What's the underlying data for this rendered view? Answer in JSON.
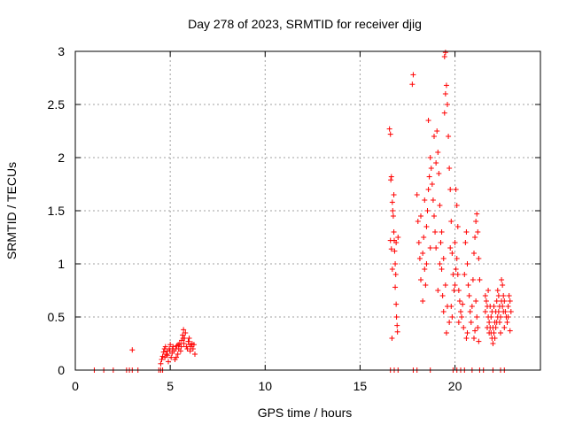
{
  "chart_data": {
    "type": "scatter",
    "title": "Day 278 of 2023, SRMTID for receiver djig",
    "xlabel": "GPS time / hours",
    "ylabel": "SRMTID / TECUs",
    "xlim": [
      0,
      24.5
    ],
    "ylim": [
      0,
      3
    ],
    "xticks": [
      0,
      5,
      10,
      15,
      20
    ],
    "xtick_labels": [
      "0",
      "5",
      "10",
      "15",
      "20"
    ],
    "yticks": [
      0,
      0.5,
      1,
      1.5,
      2,
      2.5,
      3
    ],
    "ytick_labels": [
      "0",
      "0.5",
      "1",
      "1.5",
      "2",
      "2.5",
      "3"
    ],
    "grid": true,
    "marker": "+",
    "series": [
      {
        "name": "SRMTID",
        "color": "#ff0000",
        "points": [
          [
            1.0,
            0
          ],
          [
            1.5,
            0
          ],
          [
            2.0,
            0
          ],
          [
            2.7,
            0
          ],
          [
            2.85,
            0
          ],
          [
            3.0,
            0
          ],
          [
            3.3,
            0
          ],
          [
            4.4,
            0
          ],
          [
            4.5,
            0
          ],
          [
            4.6,
            0
          ],
          [
            3.0,
            0.19
          ],
          [
            4.5,
            0.06
          ],
          [
            4.55,
            0.1
          ],
          [
            4.6,
            0.13
          ],
          [
            4.65,
            0.17
          ],
          [
            4.7,
            0.2
          ],
          [
            4.72,
            0.12
          ],
          [
            4.75,
            0.22
          ],
          [
            4.8,
            0.15
          ],
          [
            4.85,
            0.18
          ],
          [
            4.9,
            0.08
          ],
          [
            4.95,
            0.2
          ],
          [
            5.0,
            0.24
          ],
          [
            5.05,
            0.12
          ],
          [
            5.1,
            0.16
          ],
          [
            5.15,
            0.22
          ],
          [
            5.2,
            0.18
          ],
          [
            5.25,
            0.1
          ],
          [
            5.3,
            0.2
          ],
          [
            5.35,
            0.23
          ],
          [
            5.4,
            0.15
          ],
          [
            5.45,
            0.2
          ],
          [
            5.5,
            0.25
          ],
          [
            5.55,
            0.18
          ],
          [
            5.6,
            0.28
          ],
          [
            5.65,
            0.33
          ],
          [
            5.7,
            0.38
          ],
          [
            5.72,
            0.25
          ],
          [
            5.75,
            0.3
          ],
          [
            5.8,
            0.35
          ],
          [
            5.85,
            0.22
          ],
          [
            5.9,
            0.2
          ],
          [
            5.95,
            0.27
          ],
          [
            6.0,
            0.3
          ],
          [
            6.05,
            0.18
          ],
          [
            6.1,
            0.22
          ],
          [
            6.15,
            0.25
          ],
          [
            6.2,
            0.2
          ],
          [
            6.25,
            0.24
          ],
          [
            6.3,
            0.15
          ],
          [
            4.85,
            0.14
          ],
          [
            5.12,
            0.2
          ],
          [
            5.32,
            0.12
          ],
          [
            5.58,
            0.22
          ],
          [
            5.68,
            0.3
          ],
          [
            6.02,
            0.24
          ],
          [
            4.98,
            0.18
          ],
          [
            5.42,
            0.24
          ],
          [
            16.6,
            0
          ],
          [
            16.8,
            0
          ],
          [
            17.0,
            0
          ],
          [
            17.8,
            0
          ],
          [
            18.0,
            0
          ],
          [
            18.7,
            0
          ],
          [
            19.9,
            0
          ],
          [
            20.1,
            0
          ],
          [
            20.3,
            0
          ],
          [
            20.5,
            0
          ],
          [
            20.9,
            0
          ],
          [
            21.3,
            0
          ],
          [
            21.5,
            0
          ],
          [
            22.0,
            0
          ],
          [
            22.4,
            0
          ],
          [
            22.6,
            0
          ],
          [
            16.55,
            2.27
          ],
          [
            16.6,
            2.22
          ],
          [
            16.62,
            1.79
          ],
          [
            16.65,
            1.82
          ],
          [
            16.7,
            1.58
          ],
          [
            16.72,
            1.5
          ],
          [
            16.75,
            1.45
          ],
          [
            16.78,
            1.3
          ],
          [
            16.8,
            1.22
          ],
          [
            16.82,
            1.12
          ],
          [
            16.85,
            1.0
          ],
          [
            16.88,
            0.9
          ],
          [
            16.9,
            0.62
          ],
          [
            16.92,
            0.5
          ],
          [
            16.95,
            0.42
          ],
          [
            16.97,
            0.36
          ],
          [
            16.6,
            1.22
          ],
          [
            16.65,
            1.14
          ],
          [
            16.7,
            0.95
          ],
          [
            16.9,
            1.2
          ],
          [
            16.85,
            0.78
          ],
          [
            17.0,
            1.25
          ],
          [
            16.78,
            1.65
          ],
          [
            16.68,
            0.3
          ],
          [
            17.8,
            2.78
          ],
          [
            17.75,
            2.69
          ],
          [
            18.0,
            1.65
          ],
          [
            18.05,
            1.4
          ],
          [
            18.1,
            1.2
          ],
          [
            18.15,
            1.05
          ],
          [
            18.2,
            0.85
          ],
          [
            18.3,
            1.1
          ],
          [
            18.35,
            1.25
          ],
          [
            18.4,
            0.95
          ],
          [
            18.45,
            0.8
          ],
          [
            18.5,
            1.35
          ],
          [
            18.55,
            1.5
          ],
          [
            18.6,
            1.7
          ],
          [
            18.65,
            1.82
          ],
          [
            18.7,
            2.0
          ],
          [
            18.75,
            1.9
          ],
          [
            18.8,
            1.75
          ],
          [
            18.85,
            1.6
          ],
          [
            18.9,
            1.45
          ],
          [
            18.95,
            1.3
          ],
          [
            19.0,
            1.15
          ],
          [
            19.05,
            2.25
          ],
          [
            19.1,
            2.05
          ],
          [
            19.15,
            1.85
          ],
          [
            19.2,
            1.55
          ],
          [
            19.25,
            1.2
          ],
          [
            19.3,
            0.95
          ],
          [
            19.35,
            0.7
          ],
          [
            19.4,
            0.55
          ],
          [
            19.45,
            2.42
          ],
          [
            19.5,
            2.6
          ],
          [
            19.45,
            2.95
          ],
          [
            19.5,
            2.99
          ],
          [
            19.55,
            2.68
          ],
          [
            19.6,
            2.5
          ],
          [
            19.65,
            2.2
          ],
          [
            19.7,
            1.9
          ],
          [
            19.75,
            1.7
          ],
          [
            19.8,
            1.4
          ],
          [
            19.85,
            1.1
          ],
          [
            19.9,
            0.9
          ],
          [
            18.6,
            2.35
          ],
          [
            18.9,
            2.2
          ],
          [
            19.0,
            1.95
          ],
          [
            19.2,
            1.0
          ],
          [
            19.3,
            1.3
          ],
          [
            19.5,
            0.8
          ],
          [
            19.6,
            0.6
          ],
          [
            19.7,
            0.45
          ],
          [
            19.8,
            0.6
          ],
          [
            19.95,
            0.75
          ],
          [
            18.2,
            1.45
          ],
          [
            18.4,
            1.6
          ],
          [
            18.7,
            1.15
          ],
          [
            19.1,
            0.75
          ],
          [
            19.4,
            1.05
          ],
          [
            19.55,
            0.35
          ],
          [
            19.75,
            1.15
          ],
          [
            19.85,
            0.5
          ],
          [
            18.3,
            0.65
          ],
          [
            18.5,
            1.0
          ],
          [
            20.0,
            0.8
          ],
          [
            20.05,
            0.95
          ],
          [
            20.1,
            1.05
          ],
          [
            20.15,
            0.9
          ],
          [
            20.2,
            0.75
          ],
          [
            20.25,
            0.65
          ],
          [
            20.3,
            0.55
          ],
          [
            20.35,
            0.5
          ],
          [
            20.4,
            0.62
          ],
          [
            20.5,
            0.9
          ],
          [
            20.55,
            1.2
          ],
          [
            20.6,
            1.3
          ],
          [
            20.65,
            1.0
          ],
          [
            20.7,
            0.8
          ],
          [
            20.75,
            0.7
          ],
          [
            20.8,
            0.55
          ],
          [
            20.85,
            0.45
          ],
          [
            20.9,
            0.6
          ],
          [
            20.95,
            0.85
          ],
          [
            21.0,
            1.1
          ],
          [
            21.05,
            1.25
          ],
          [
            21.1,
            1.4
          ],
          [
            21.15,
            1.47
          ],
          [
            21.2,
            1.3
          ],
          [
            21.25,
            1.05
          ],
          [
            21.3,
            0.85
          ],
          [
            21.1,
            0.65
          ],
          [
            21.15,
            0.5
          ],
          [
            21.2,
            0.4
          ],
          [
            21.25,
            0.27
          ],
          [
            20.6,
            0.3
          ],
          [
            20.2,
            0.45
          ],
          [
            20.0,
            1.2
          ],
          [
            20.05,
            1.7
          ],
          [
            20.1,
            1.55
          ],
          [
            20.15,
            1.35
          ],
          [
            20.45,
            0.4
          ],
          [
            20.65,
            0.35
          ],
          [
            21.0,
            0.3
          ],
          [
            21.05,
            0.37
          ],
          [
            21.6,
            0.7
          ],
          [
            21.65,
            0.65
          ],
          [
            21.7,
            0.6
          ],
          [
            21.75,
            0.5
          ],
          [
            21.8,
            0.45
          ],
          [
            21.85,
            0.4
          ],
          [
            21.9,
            0.35
          ],
          [
            21.95,
            0.3
          ],
          [
            22.0,
            0.25
          ],
          [
            22.05,
            0.35
          ],
          [
            22.1,
            0.45
          ],
          [
            22.15,
            0.55
          ],
          [
            22.2,
            0.65
          ],
          [
            22.25,
            0.75
          ],
          [
            22.3,
            0.7
          ],
          [
            22.35,
            0.6
          ],
          [
            22.4,
            0.5
          ],
          [
            22.45,
            0.85
          ],
          [
            22.5,
            0.8
          ],
          [
            22.55,
            0.7
          ],
          [
            22.6,
            0.65
          ],
          [
            22.65,
            0.55
          ],
          [
            22.7,
            0.5
          ],
          [
            22.75,
            0.45
          ],
          [
            22.8,
            0.6
          ],
          [
            22.85,
            0.7
          ],
          [
            22.9,
            0.65
          ],
          [
            22.95,
            0.55
          ],
          [
            22.9,
            0.37
          ],
          [
            22.8,
            0.5
          ],
          [
            21.7,
            0.4
          ],
          [
            21.8,
            0.35
          ],
          [
            21.9,
            0.5
          ],
          [
            22.0,
            0.4
          ],
          [
            22.1,
            0.3
          ],
          [
            22.2,
            0.45
          ],
          [
            22.3,
            0.55
          ],
          [
            22.4,
            0.35
          ],
          [
            22.5,
            0.6
          ],
          [
            22.6,
            0.4
          ],
          [
            22.45,
            0.65
          ],
          [
            22.55,
            0.55
          ],
          [
            22.05,
            0.6
          ],
          [
            21.95,
            0.55
          ],
          [
            21.75,
            0.75
          ],
          [
            21.6,
            0.55
          ],
          [
            22.25,
            0.5
          ],
          [
            22.35,
            0.45
          ],
          [
            21.85,
            0.6
          ],
          [
            22.15,
            0.4
          ]
        ]
      }
    ]
  }
}
